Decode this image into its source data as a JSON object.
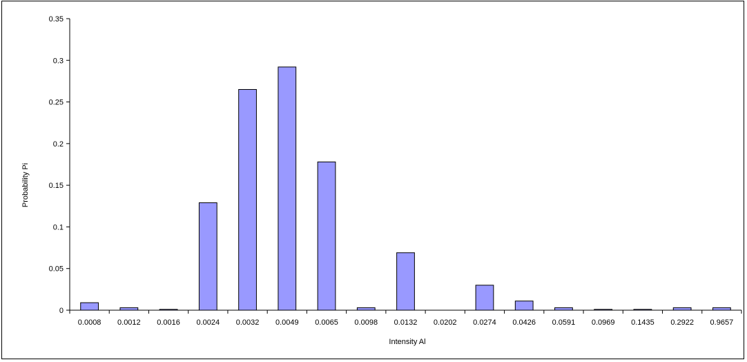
{
  "chart_data": {
    "type": "bar",
    "title": "",
    "xlabel": "Intensity Al",
    "ylabel": "Probability Pi",
    "categories": [
      "0.0008",
      "0.0012",
      "0.0016",
      "0.0024",
      "0.0032",
      "0.0049",
      "0.0065",
      "0.0098",
      "0.0132",
      "0.0202",
      "0.0274",
      "0.0426",
      "0.0591",
      "0.0969",
      "0.1435",
      "0.2922",
      "0.9657"
    ],
    "values": [
      0.009,
      0.003,
      0.001,
      0.129,
      0.265,
      0.292,
      0.178,
      0.003,
      0.069,
      0.0,
      0.03,
      0.011,
      0.003,
      0.001,
      0.001,
      0.003,
      0.003
    ],
    "ylim": [
      0,
      0.35
    ],
    "yticks": [
      "0",
      "0.05",
      "0.1",
      "0.15",
      "0.2",
      "0.25",
      "0.3",
      "0.35"
    ],
    "ytick_values": [
      0,
      0.05,
      0.1,
      0.15,
      0.2,
      0.25,
      0.3,
      0.35
    ],
    "grid": false,
    "legend": "none",
    "colors": {
      "bar_fill": "#9999ff",
      "bar_stroke": "#000000",
      "axis": "#000000"
    }
  }
}
